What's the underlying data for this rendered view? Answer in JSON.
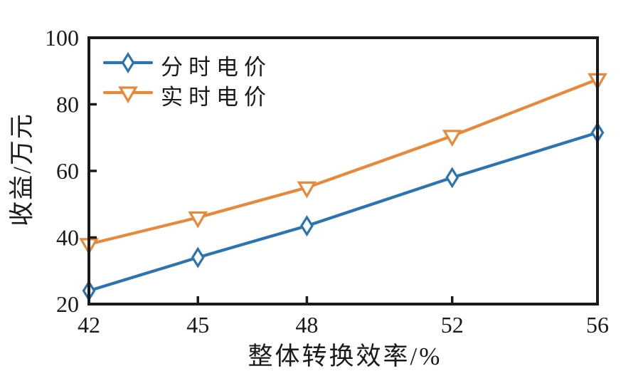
{
  "chart_data": {
    "type": "line",
    "title": "",
    "xlabel": "整体转换效率/%",
    "ylabel": "收益/万元",
    "x": [
      42,
      45,
      48,
      52,
      56
    ],
    "xticks": [
      42,
      45,
      48,
      52,
      56
    ],
    "yticks": [
      20,
      40,
      60,
      80,
      100
    ],
    "xlim": [
      42,
      56
    ],
    "ylim": [
      20,
      100
    ],
    "grid": false,
    "legend_position": "top-left",
    "axis_color": "#1a1a1a",
    "marker_fill": "#ffffff",
    "series": [
      {
        "name": "分时电价",
        "color": "#2b74b0",
        "marker": "diamond",
        "values": [
          24,
          34,
          43.5,
          58,
          71.5
        ]
      },
      {
        "name": "实时电价",
        "color": "#e8883a",
        "marker": "triangle-down",
        "values": [
          38,
          46,
          55,
          70.5,
          87.5
        ]
      }
    ]
  }
}
